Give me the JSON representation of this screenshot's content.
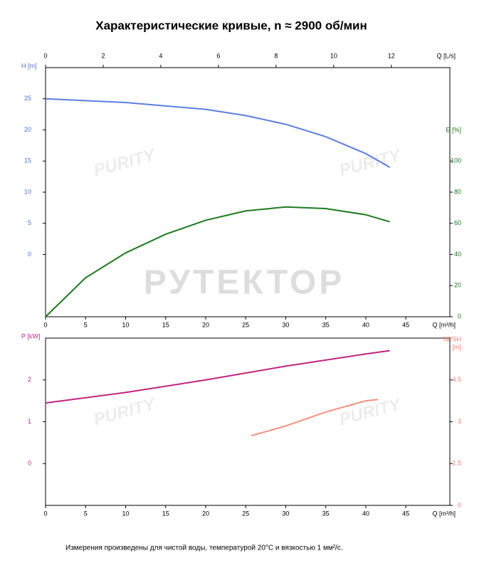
{
  "title": "Характеристические кривые, n ≈ 2900 об/мин",
  "footnote": "Измерения произведены для чистой воды, температурой 20°C и вязкостью 1 мм²/с.",
  "watermarks": [
    "РУТЕКТОР",
    "PURITY"
  ],
  "chart_data": [
    {
      "type": "line",
      "xlabel": "Q [m³/h]",
      "xlim": [
        0,
        50.5
      ],
      "xticks": [
        0,
        5,
        10,
        15,
        20,
        25,
        30,
        35,
        40,
        45
      ],
      "x2label": "Q [L/s]",
      "x2lim": [
        0,
        14.03
      ],
      "x2ticks": [
        0,
        2,
        4,
        6,
        8,
        10,
        12
      ],
      "ylabel": "H [m]",
      "ylim": [
        -10,
        30
      ],
      "yticks": [
        0,
        5,
        10,
        15,
        20,
        25
      ],
      "ycolor": "#4a6fd0",
      "y2label": [
        "E [%]"
      ],
      "y2lim": [
        0,
        160
      ],
      "y2ticks": [
        0,
        20,
        40,
        60,
        80,
        100
      ],
      "y2color": "#1e7a1e",
      "series": [
        {
          "name": "H",
          "color": "#5b7fe0",
          "x": [
            0,
            10,
            20,
            25,
            30,
            35,
            40,
            43
          ],
          "values": [
            25,
            24.4,
            23.3,
            22.3,
            20.9,
            18.9,
            16.2,
            14.0
          ]
        },
        {
          "name": "E",
          "color": "#1e7a1e",
          "axis": "y2",
          "x": [
            0,
            5,
            10,
            15,
            20,
            25,
            30,
            35,
            40,
            43
          ],
          "values": [
            0,
            25,
            41,
            53,
            62,
            68,
            70.5,
            69.5,
            65.5,
            61
          ]
        }
      ]
    },
    {
      "type": "line",
      "xlabel": "Q [m³/h]",
      "xlim": [
        0,
        50.5
      ],
      "xticks": [
        0,
        5,
        10,
        15,
        20,
        25,
        30,
        35,
        40,
        45
      ],
      "ylabel": "P [kW]",
      "ylim": [
        -1,
        3
      ],
      "yticks": [
        0,
        1,
        2
      ],
      "ycolor": "#c0257f",
      "y2label": [
        "NPSH",
        "[m]"
      ],
      "y2lim": [
        0,
        6
      ],
      "y2ticks": [
        0,
        1.5,
        3,
        4.5
      ],
      "y2color": "#f07a6a",
      "series": [
        {
          "name": "P",
          "color": "#c0257f",
          "x": [
            0,
            10,
            20,
            30,
            40,
            43
          ],
          "values": [
            1.45,
            1.7,
            2.0,
            2.33,
            2.62,
            2.7
          ]
        },
        {
          "name": "NPSH",
          "color": "#f49080",
          "axis": "y2",
          "x": [
            25.7,
            30,
            35,
            40,
            41.5
          ],
          "values": [
            2.5,
            2.85,
            3.35,
            3.75,
            3.8
          ]
        }
      ]
    }
  ]
}
